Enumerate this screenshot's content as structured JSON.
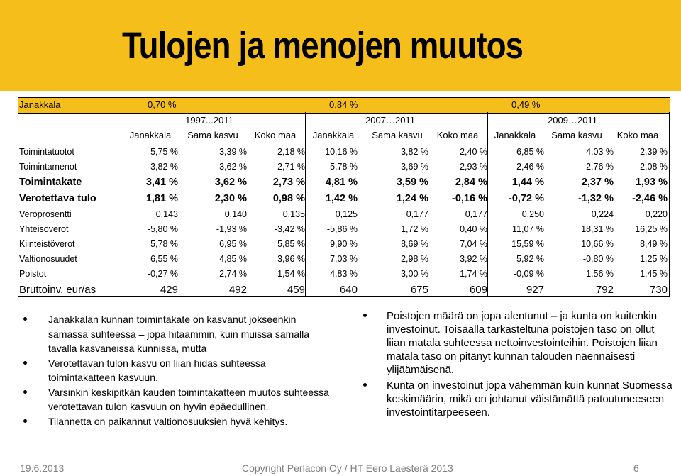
{
  "slide": {
    "title": "Tulojen ja menojen muutos",
    "accent_color": "#f6be1a"
  },
  "table": {
    "top_row": {
      "label": "Janakkala",
      "values": [
        "0,70 %",
        "0,84 %",
        "0,49 %"
      ]
    },
    "periods": [
      "1997...2011",
      "2007…2011",
      "2009…2011"
    ],
    "column_headers": [
      "Janakkala",
      "Sama kasvu",
      "Koko maa",
      "Janakkala",
      "Sama kasvu",
      "Koko maa",
      "Janakkala",
      "Sama kasvu",
      "Koko maa"
    ],
    "rows": [
      {
        "label": "Toimintatuotot",
        "values": [
          "5,75 %",
          "3,39 %",
          "2,18 %",
          "10,16 %",
          "3,82 %",
          "2,40 %",
          "6,85 %",
          "4,03 %",
          "2,39 %"
        ]
      },
      {
        "label": "Toimintamenot",
        "values": [
          "3,82 %",
          "3,62 %",
          "2,71 %",
          "5,78 %",
          "3,69 %",
          "2,93 %",
          "2,46 %",
          "2,76 %",
          "2,08 %"
        ]
      },
      {
        "label": "Toimintakate",
        "values": [
          "3,41 %",
          "3,62 %",
          "2,73 %",
          "4,81 %",
          "3,59 %",
          "2,84 %",
          "1,44 %",
          "2,37 %",
          "1,93 %"
        ]
      },
      {
        "label": "Verotettava tulo",
        "values": [
          "1,81 %",
          "2,30 %",
          "0,98 %",
          "1,42 %",
          "1,24 %",
          "-0,16 %",
          "-0,72 %",
          "-1,32 %",
          "-2,46 %"
        ]
      },
      {
        "label": "Veroprosentti",
        "values": [
          "0,143",
          "0,140",
          "0,135",
          "0,125",
          "0,177",
          "0,177",
          "0,250",
          "0,224",
          "0,220"
        ]
      },
      {
        "label": "Yhteisöverot",
        "values": [
          "-5,80 %",
          "-1,93 %",
          "-3,42 %",
          "-5,86 %",
          "1,72 %",
          "0,40 %",
          "11,07 %",
          "18,31 %",
          "16,25 %"
        ]
      },
      {
        "label": "Kiinteistöverot",
        "values": [
          "5,78 %",
          "6,95 %",
          "5,85 %",
          "9,90 %",
          "8,69 %",
          "7,04 %",
          "15,59 %",
          "10,66 %",
          "8,49 %"
        ]
      },
      {
        "label": "Valtionosuudet",
        "values": [
          "6,55 %",
          "4,85 %",
          "3,96 %",
          "7,03 %",
          "2,98 %",
          "3,92 %",
          "5,92 %",
          "-0,80 %",
          "1,25 %"
        ]
      },
      {
        "label": "Poistot",
        "values": [
          "-0,27 %",
          "2,74 %",
          "1,54 %",
          "4,83 %",
          "3,00 %",
          "1,74 %",
          "-0,09 %",
          "1,56 %",
          "1,45 %"
        ]
      },
      {
        "label": "Bruttoinv. eur/as",
        "values": [
          "429",
          "492",
          "459",
          "640",
          "675",
          "609",
          "927",
          "792",
          "730"
        ]
      }
    ]
  },
  "bullets_left": [
    "Janakkalan kunnan toimintakate on kasvanut jokseenkin samassa suhteessa – jopa hitaammin, kuin muissa samalla tavalla kasvaneissa kunnissa, mutta",
    "Verotettavan tulon kasvu on liian hidas suhteessa toimintakatteen kasvuun.",
    "Varsinkin keskipitkän kauden toimintakatteen muutos suhteessa verotettavan tulon kasvuun on hyvin epäedullinen.",
    "Tilannetta on paikannut valtionosuuksien hyvä kehitys."
  ],
  "bullets_right": [
    "Poistojen määrä on jopa alentunut – ja kunta on kuitenkin investoinut. Toisaalla tarkasteltuna poistojen taso on ollut liian matala suhteessa nettoinvestointeihin. Poistojen liian matala taso on pitänyt kunnan talouden näennäisesti ylijäämäisenä.",
    "Kunta on investoinut jopa vähemmän kuin kunnat Suomessa keskimäärin, mikä on johtanut väistämättä patoutuneeseen investointitarpeeseen."
  ],
  "footer": {
    "date": "19.6.2013",
    "copyright": "Copyright Perlacon Oy / HT Eero Laesterä 2013",
    "page_number": "6"
  }
}
